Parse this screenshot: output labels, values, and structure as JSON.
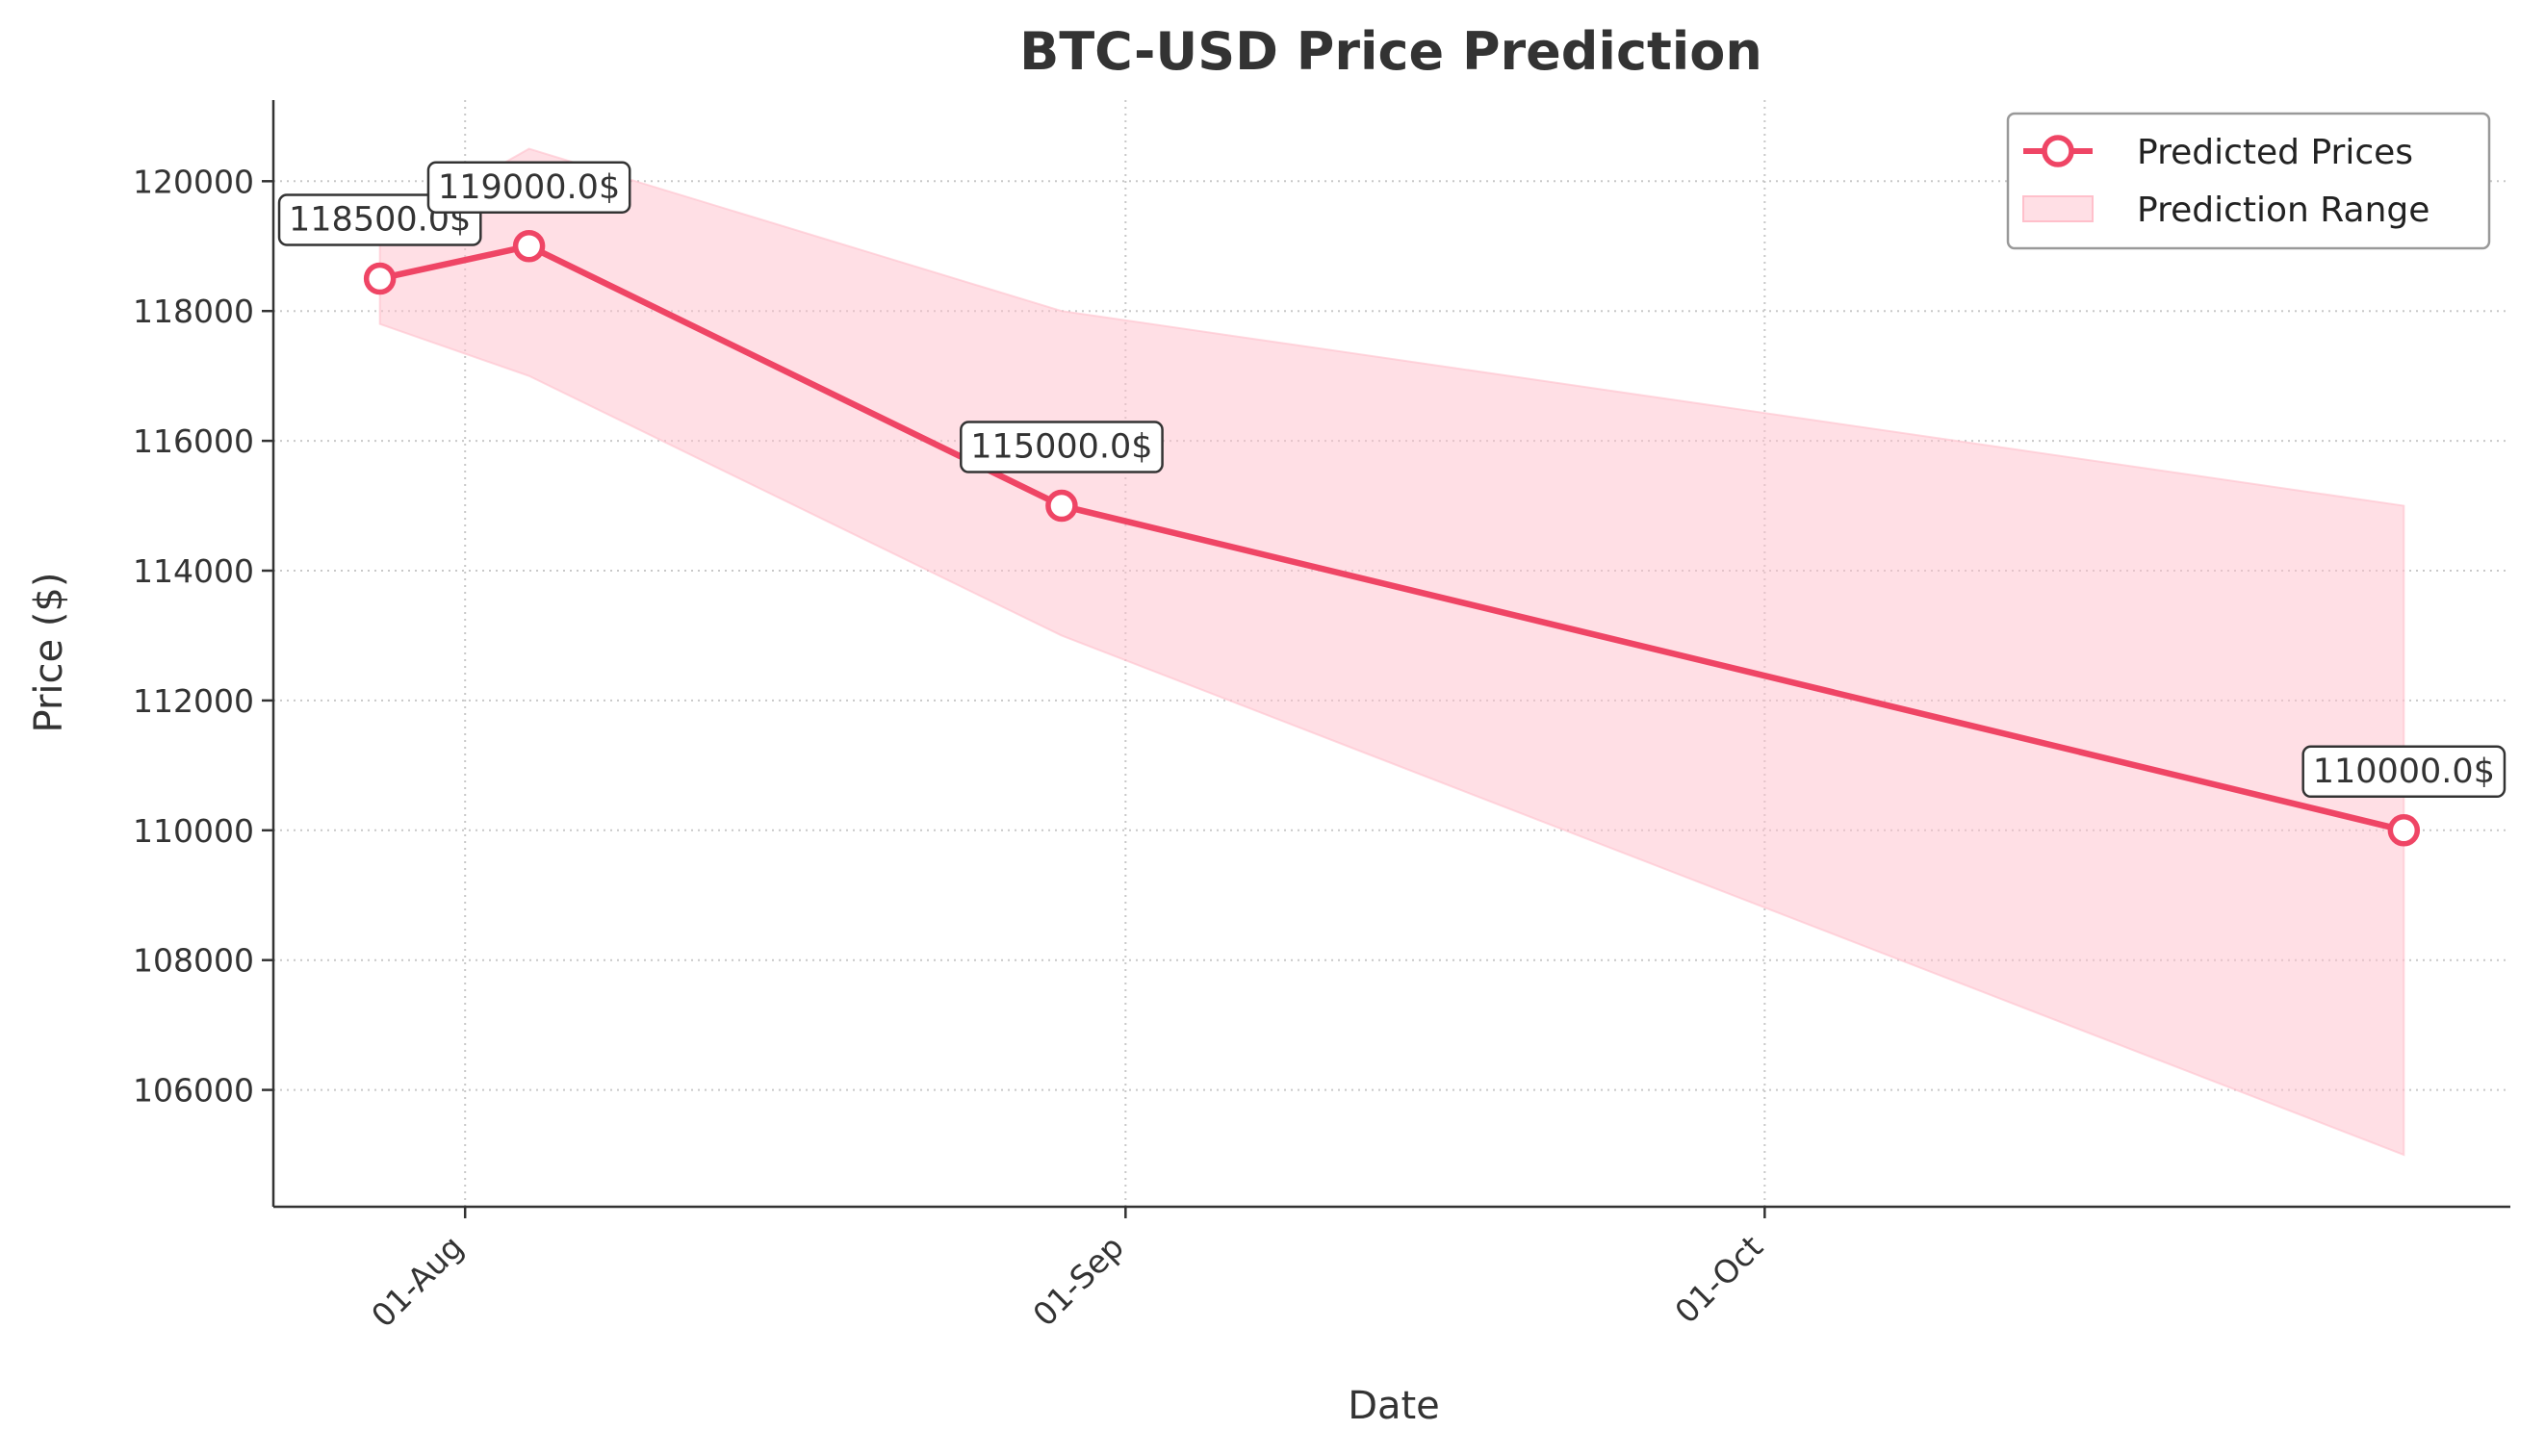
{
  "chart_data": {
    "type": "line",
    "title": "BTC-USD Price Prediction",
    "xlabel": "Date",
    "ylabel": "Price ($)",
    "x": [
      "2025-07-28",
      "2025-08-04",
      "2025-08-29",
      "2025-10-31"
    ],
    "series": [
      {
        "name": "Predicted Prices",
        "values": [
          118500,
          119000,
          115000,
          110000
        ],
        "color": "#ef4565"
      }
    ],
    "range": {
      "name": "Prediction Range",
      "lower": [
        117800,
        117000,
        113000,
        105000
      ],
      "upper": [
        119200,
        120500,
        118000,
        115000
      ],
      "color": "#ffc0cb"
    },
    "annotations": [
      "118500.0$",
      "119000.0$",
      "115000.0$",
      "110000.0$"
    ],
    "xticks": [
      {
        "date": "2025-08-01",
        "label": "01-Aug"
      },
      {
        "date": "2025-09-01",
        "label": "01-Sep"
      },
      {
        "date": "2025-10-01",
        "label": "01-Oct"
      }
    ],
    "yticks": [
      106000,
      108000,
      110000,
      112000,
      114000,
      116000,
      118000,
      120000
    ],
    "xlim": [
      "2025-07-23",
      "2025-11-05"
    ],
    "ylim": [
      104200,
      121250
    ],
    "grid": true,
    "legend_position": "top-right"
  }
}
